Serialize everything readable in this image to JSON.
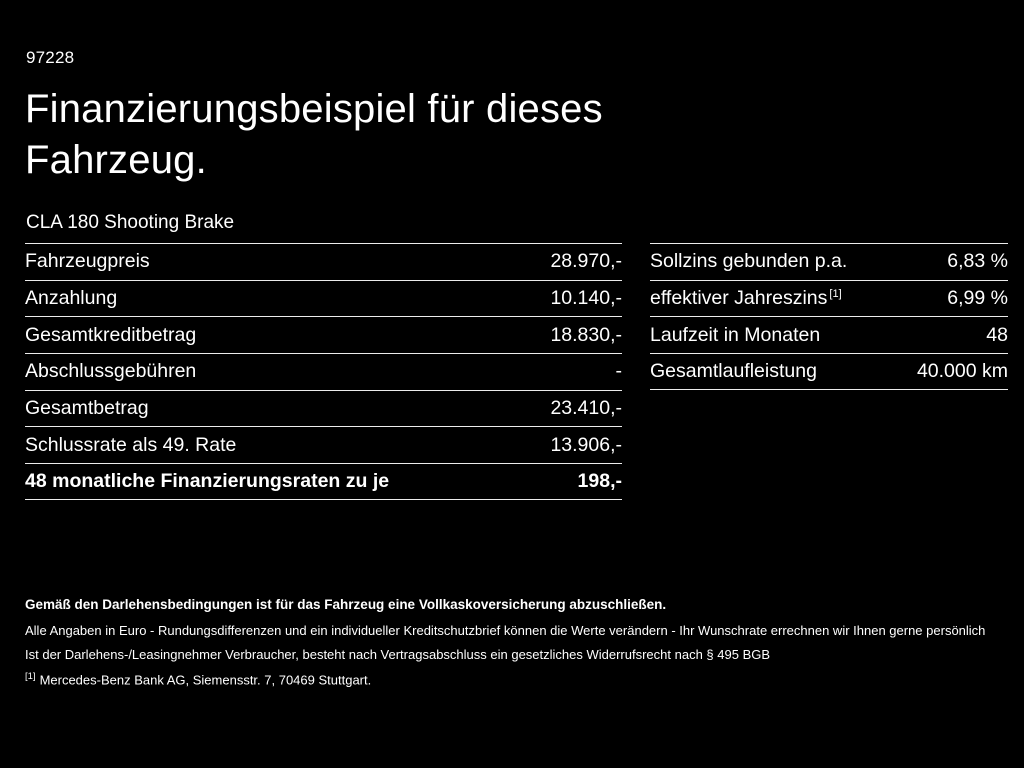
{
  "colors": {
    "background": "#000000",
    "text": "#ffffff",
    "divider": "#ececec"
  },
  "page": {
    "code": "97228",
    "title_line1": "Finanzierungsbeispiel für dieses",
    "title_line2": "Fahrzeug.",
    "vehicle": "CLA 180 Shooting Brake"
  },
  "left_table": {
    "rows": [
      {
        "label": "Fahrzeugpreis",
        "value": "28.970,-"
      },
      {
        "label": "Anzahlung",
        "value": "10.140,-"
      },
      {
        "label": "Gesamtkreditbetrag",
        "value": "18.830,-"
      },
      {
        "label": "Abschlussgebühren",
        "value": "-"
      },
      {
        "label": "Gesamtbetrag",
        "value": "23.410,-"
      },
      {
        "label": "Schlussrate als 49. Rate",
        "value": "13.906,-"
      },
      {
        "label": "48 monatliche Finanzierungsraten zu je",
        "value": "198,-"
      }
    ]
  },
  "right_table": {
    "rows": [
      {
        "label": "Sollzins gebunden p.a.",
        "sup": "",
        "value": "6,83 %"
      },
      {
        "label": "effektiver Jahreszins",
        "sup": "[1]",
        "value": "6,99 %"
      },
      {
        "label": "Laufzeit in Monaten",
        "sup": "",
        "value": "48"
      },
      {
        "label": "Gesamtlaufleistung",
        "sup": "",
        "value": "40.000 km"
      }
    ]
  },
  "footer": {
    "line_bold": "Gemäß den Darlehensbedingungen ist für das Fahrzeug eine Vollkaskoversicherung abzuschließen.",
    "line2": "Alle Angaben in Euro - Rundungsdifferenzen und ein individueller Kreditschutzbrief können die Werte verändern - Ihr Wunschrate errechnen wir Ihnen gerne persönlich",
    "line3": "Ist der Darlehens-/Leasingnehmer Verbraucher, besteht nach Vertragsabschluss ein gesetzliches Widerrufsrecht nach § 495 BGB",
    "footnote_marker": "[1]",
    "footnote_text": "Mercedes-Benz Bank AG, Siemensstr. 7, 70469 Stuttgart."
  }
}
